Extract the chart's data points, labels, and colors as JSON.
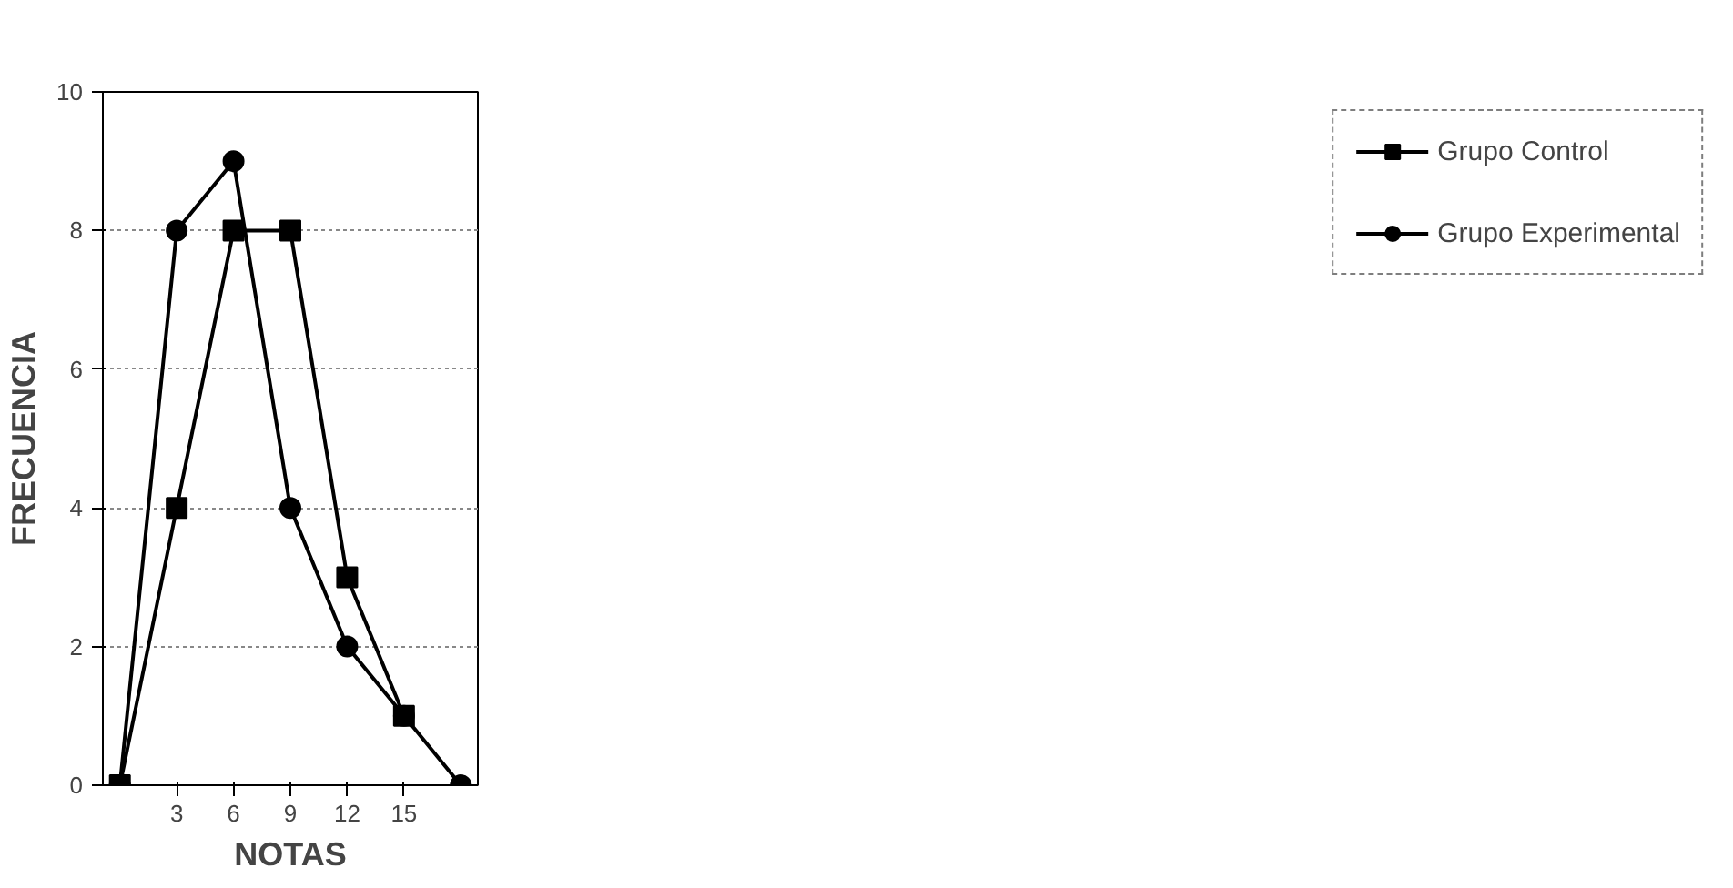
{
  "chart_data": {
    "type": "line",
    "xlabel": "NOTAS",
    "ylabel": "FRECUENCIA",
    "categories": [
      null,
      "3",
      "6",
      "9",
      "12",
      "15",
      null
    ],
    "series": [
      {
        "name": "Grupo Control",
        "color": "#000000",
        "marker": "square",
        "values": [
          0,
          4,
          8,
          8,
          3,
          1,
          null
        ]
      },
      {
        "name": "Grupo Experimental",
        "color": "#000000",
        "marker": "circle",
        "values": [
          0,
          8,
          9,
          4,
          2,
          1,
          0
        ]
      }
    ],
    "ylim": [
      0,
      10
    ],
    "yticks": [
      0,
      2,
      4,
      6,
      8,
      10
    ],
    "grid": "y",
    "legend": "right"
  }
}
